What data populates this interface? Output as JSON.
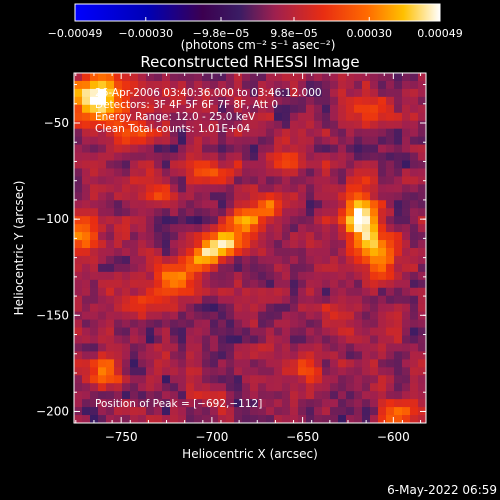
{
  "chart_data": {
    "type": "heatmap",
    "title": "Reconstructed RHESSI Image",
    "xlabel": "Heliocentric X (arcsec)",
    "ylabel": "Heliocentric Y (arcsec)",
    "xlim": [
      -776,
      -582
    ],
    "ylim": [
      -206,
      -24
    ],
    "xticks": [
      -750,
      -700,
      -650,
      -600
    ],
    "xtick_labels": [
      "−750",
      "−700",
      "−650",
      "−600"
    ],
    "yticks": [
      -50,
      -100,
      -150,
      -200
    ],
    "ytick_labels": [
      "−50",
      "−100",
      "−150",
      "−200"
    ],
    "colorbar": {
      "min": -0.00049,
      "max": 0.00049,
      "tick_values": [
        -0.00049,
        -0.0003,
        -9.8e-05,
        9.8e-05,
        0.0003,
        0.00049
      ],
      "tick_labels": [
        "−0.00049",
        "−0.00030",
        "−9.8e−05",
        "9.8e−05",
        "0.00030",
        "0.00049"
      ],
      "units_label": "(photons cm⁻² s⁻¹ asec⁻²)"
    },
    "annotations": {
      "time_range": "26-Apr-2006 03:40:36.000 to 03:46:12.000",
      "detectors": "Detectors: 3F 4F 5F 6F 7F 8F, Att 0",
      "energy_range": "Energy Range: 12.0 - 25.0 keV",
      "clean_counts": "Clean  Total counts: 1.01E+04",
      "peak_position": "Position of Peak = [−692,−112]"
    },
    "peak": {
      "x": -692,
      "y": -112
    },
    "sources": [
      {
        "x": -765,
        "y": -37,
        "amp": 0.00049,
        "sx": 10,
        "sy": 9
      },
      {
        "x": -743,
        "y": -55,
        "amp": 0.00022,
        "sx": 8,
        "sy": 7
      },
      {
        "x": -692,
        "y": -112,
        "amp": 0.00045,
        "sx": 7,
        "sy": 5
      },
      {
        "x": -705,
        "y": -120,
        "amp": 0.00036,
        "sx": 7,
        "sy": 5
      },
      {
        "x": -720,
        "y": -132,
        "amp": 0.00028,
        "sx": 8,
        "sy": 5
      },
      {
        "x": -740,
        "y": -145,
        "amp": 0.0002,
        "sx": 8,
        "sy": 5
      },
      {
        "x": -680,
        "y": -100,
        "amp": 0.0003,
        "sx": 7,
        "sy": 5
      },
      {
        "x": -668,
        "y": -92,
        "amp": 0.0002,
        "sx": 6,
        "sy": 5
      },
      {
        "x": -618,
        "y": -100,
        "amp": 0.00042,
        "sx": 7,
        "sy": 11
      },
      {
        "x": -607,
        "y": -118,
        "amp": 0.0003,
        "sx": 6,
        "sy": 9
      },
      {
        "x": -772,
        "y": -108,
        "amp": 0.00034,
        "sx": 6,
        "sy": 8
      },
      {
        "x": -760,
        "y": -178,
        "amp": 0.00022,
        "sx": 7,
        "sy": 6
      },
      {
        "x": -700,
        "y": -75,
        "amp": 0.0002,
        "sx": 8,
        "sy": 4
      },
      {
        "x": -598,
        "y": -200,
        "amp": 0.00025,
        "sx": 6,
        "sy": 5
      },
      {
        "x": -650,
        "y": -178,
        "amp": 0.00016,
        "sx": 7,
        "sy": 5
      },
      {
        "x": -728,
        "y": -88,
        "amp": 0.00014,
        "sx": 6,
        "sy": 5
      },
      {
        "x": -613,
        "y": -42,
        "amp": 0.00015,
        "sx": 8,
        "sy": 6
      },
      {
        "x": -658,
        "y": -70,
        "amp": 0.00012,
        "sx": 6,
        "sy": 5
      },
      {
        "x": -628,
        "y": -150,
        "amp": 0.00014,
        "sx": 6,
        "sy": 6
      }
    ],
    "background_level": 4e-05,
    "noise_amplitude": 0.00012
  },
  "footer": {
    "date_stamp": "6-May-2022 06:59"
  }
}
